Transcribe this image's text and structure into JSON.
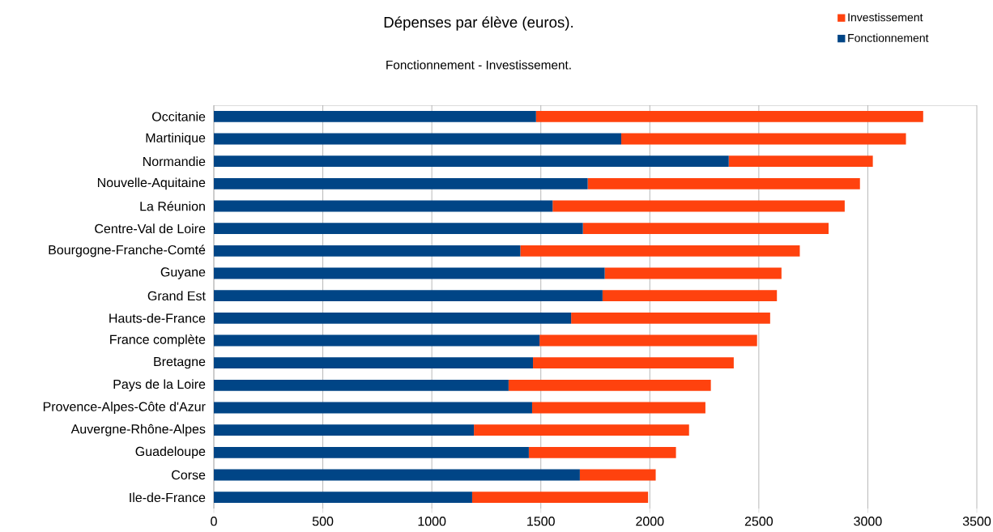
{
  "chart_data": {
    "type": "bar",
    "orientation": "horizontal",
    "stacked": true,
    "title": "Dépenses par élève (euros).",
    "subtitle": "Fonctionnement - Investissement.",
    "categories": [
      "Occitanie",
      "Martinique",
      "Normandie",
      "Nouvelle-Aquitaine",
      "La Réunion",
      "Centre-Val de Loire",
      "Bourgogne-Franche-Comté",
      "Guyane",
      "Grand Est",
      "Hauts-de-France",
      "France complète",
      "Bretagne",
      "Pays de la Loire",
      "Provence-Alpes-Côte d'Azur",
      "Auvergne-Rhône-Alpes",
      "Guadeloupe",
      "Corse",
      "Ile-de-France"
    ],
    "series": [
      {
        "name": "Fonctionnement",
        "color": "#004586",
        "values": [
          1478,
          1869,
          2362,
          1715,
          1554,
          1693,
          1406,
          1793,
          1783,
          1639,
          1494,
          1464,
          1352,
          1460,
          1193,
          1445,
          1679,
          1185
        ]
      },
      {
        "name": "Investissement",
        "color": "#ff420e",
        "values": [
          1776,
          1306,
          661,
          1249,
          1340,
          1127,
          1282,
          811,
          800,
          913,
          998,
          921,
          928,
          795,
          987,
          675,
          348,
          807
        ]
      }
    ],
    "xlim": [
      0,
      3500
    ],
    "xticks": [
      0,
      500,
      1000,
      1500,
      2000,
      2500,
      3000,
      3500
    ],
    "grid": "x",
    "legend": "top right"
  }
}
